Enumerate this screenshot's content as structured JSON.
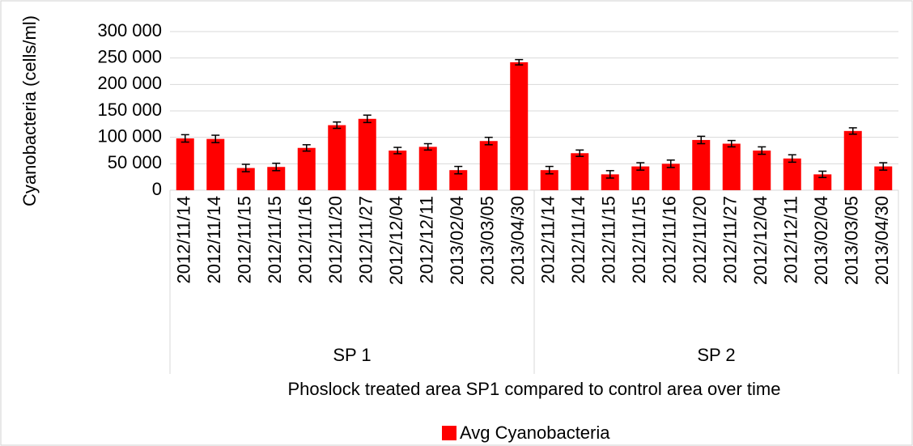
{
  "chart_data": {
    "type": "bar",
    "y_label": "Cyanobacteria (cells/ml)",
    "x_label": "Phoslock treated area SP1 compared to control area over time",
    "categories": [
      "2012/11/14",
      "2012/11/14",
      "2012/11/15",
      "2012/11/15",
      "2012/11/16",
      "2012/11/20",
      "2012/11/27",
      "2012/12/04",
      "2012/12/11",
      "2013/02/04",
      "2013/03/05",
      "2013/04/30",
      "2012/11/14",
      "2012/11/14",
      "2012/11/15",
      "2012/11/15",
      "2012/11/16",
      "2012/11/20",
      "2012/11/27",
      "2012/12/04",
      "2012/12/11",
      "2013/02/04",
      "2013/03/05",
      "2013/04/30"
    ],
    "groups": [
      "SP 1",
      "SP 2"
    ],
    "series": [
      {
        "name": "Avg Cyanobacteria",
        "color": "#ff0000",
        "values": [
          98000,
          97000,
          42000,
          44000,
          80000,
          123000,
          135000,
          75000,
          82000,
          38000,
          93000,
          242000,
          38000,
          70000,
          30000,
          45000,
          50000,
          95000,
          88000,
          75000,
          60000,
          30000,
          112000,
          45000
        ],
        "errors": [
          7000,
          7000,
          7000,
          7000,
          6000,
          6000,
          7000,
          6000,
          6000,
          7000,
          7000,
          5000,
          7000,
          6000,
          7000,
          7000,
          7000,
          7000,
          6000,
          7000,
          7000,
          6000,
          6000,
          7000
        ]
      }
    ],
    "ylim": [
      0,
      300000
    ],
    "yticks": [
      0,
      {
        "value": 50000,
        "label": "50 000"
      },
      {
        "value": 100000,
        "label": "100 000"
      },
      {
        "value": 150000,
        "label": "150 000"
      },
      {
        "value": 200000,
        "label": "200 000"
      },
      {
        "value": 250000,
        "label": "250 000"
      },
      {
        "value": 300000,
        "label": "300 000"
      }
    ],
    "grid": true,
    "legend": "bottom"
  }
}
